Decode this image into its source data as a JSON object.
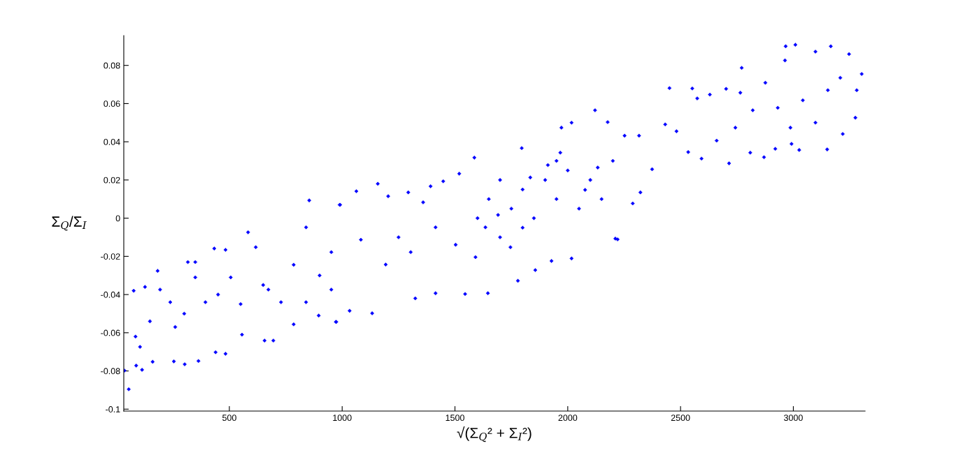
{
  "chart_data": {
    "type": "scatter",
    "xlabel": "√(Σ$_{Q}$² + Σ$_{I}$²)",
    "ylabel": "Σ$_{Q}$/Σ$_{I}$",
    "xlim": [
      32,
      3318
    ],
    "ylim": [
      -0.101,
      0.0956
    ],
    "xticks": [
      500,
      1000,
      1500,
      2000,
      2500,
      3000
    ],
    "yticks": [
      -0.1,
      -0.08,
      -0.06,
      -0.04,
      -0.02,
      0,
      0.02,
      0.04,
      0.06,
      0.08
    ],
    "marker": "diamond",
    "series": [
      {
        "color": "#0000ff",
        "x": [
          35,
          54,
          76,
          87,
          113,
          160,
          182,
          126,
          104,
          254,
          302,
          363,
          316,
          349,
          433,
          483,
          483,
          583,
          854,
          991,
          974,
          656,
          695,
          439,
          556,
          785,
          896,
          84,
          394,
          260,
          238,
          506,
          673,
          785,
          840,
          952,
          617,
          729,
          193,
          349,
          148,
          840,
          952,
          2121,
          2177,
          2017,
          1972,
          1796,
          1586,
          1519,
          1448,
          1392,
          1293,
          1158,
          1063,
          989,
          1204,
          1133,
          1033,
          972,
          1324,
          1414,
          1545,
          1646,
          1779,
          1856,
          1928,
          2017,
          2221,
          1691,
          2077,
          1635,
          2133,
          1967,
          1193,
          1304,
          1083,
          1414,
          1359,
          1503,
          1591,
          1746,
          1834,
          1912,
          2211,
          2374,
          2316,
          2252,
          2322,
          2288,
          2451,
          2432,
          2482,
          2552,
          2574,
          2534,
          2593,
          2630,
          2702,
          2715,
          2660,
          2771,
          2809,
          2870,
          2966,
          3009,
          3166,
          3247,
          3303,
          3281,
          3275,
          3219,
          3150,
          3026,
          2992,
          2920,
          3098,
          2963,
          3042,
          3153,
          2931,
          2820,
          3208,
          3098,
          2876,
          2765,
          2743,
          2987,
          1600,
          1650,
          1700,
          1750,
          1800,
          1850,
          1900,
          1950,
          2000,
          2050,
          2100,
          2150,
          2200,
          1700,
          1800,
          1950,
          300,
          450,
          550,
          650,
          900,
          1250
        ],
        "values": [
          -0.0798,
          -0.0896,
          -0.038,
          -0.0772,
          -0.0794,
          -0.0752,
          -0.0276,
          -0.036,
          -0.0674,
          -0.075,
          -0.0765,
          -0.0748,
          -0.023,
          -0.023,
          -0.0159,
          -0.0166,
          -0.071,
          -0.0074,
          0.0093,
          0.007,
          -0.0543,
          -0.0641,
          -0.0641,
          -0.0702,
          -0.061,
          -0.0556,
          -0.051,
          -0.062,
          -0.044,
          -0.057,
          -0.044,
          -0.031,
          -0.0374,
          -0.0244,
          -0.0048,
          -0.0178,
          -0.0152,
          -0.044,
          -0.0374,
          -0.031,
          -0.054,
          -0.044,
          -0.0374,
          0.0565,
          0.0503,
          0.05,
          0.0474,
          0.0367,
          0.0317,
          0.0233,
          0.0193,
          0.0167,
          0.0135,
          0.018,
          0.0141,
          0.007,
          0.0115,
          -0.0498,
          -0.0485,
          -0.0543,
          -0.042,
          -0.0393,
          -0.0397,
          -0.0393,
          -0.0328,
          -0.0272,
          -0.0224,
          -0.0211,
          -0.0111,
          0.0017,
          0.0148,
          -0.0048,
          0.0265,
          0.0343,
          -0.0243,
          -0.0178,
          -0.0113,
          -0.0048,
          0.0083,
          -0.0139,
          -0.0204,
          -0.0152,
          0.0213,
          0.0278,
          -0.0107,
          0.0256,
          0.0432,
          0.0432,
          0.0135,
          0.0077,
          0.0681,
          0.0491,
          0.0455,
          0.0679,
          0.0627,
          0.0346,
          0.0312,
          0.0647,
          0.0677,
          0.0287,
          0.0406,
          0.0787,
          0.0343,
          0.0319,
          0.09,
          0.0908,
          0.09,
          0.0859,
          0.0755,
          0.067,
          0.0526,
          0.0441,
          0.036,
          0.0357,
          0.0389,
          0.0363,
          0.0872,
          0.0826,
          0.0617,
          0.067,
          0.0578,
          0.0565,
          0.0735,
          0.05,
          0.0709,
          0.0657,
          0.0474,
          0.0474,
          0.0,
          0.01,
          -0.01,
          0.005,
          0.015,
          0.0,
          0.02,
          0.01,
          0.025,
          0.005,
          0.02,
          0.01,
          0.03,
          0.02,
          -0.005,
          0.03,
          -0.05,
          -0.04,
          -0.045,
          -0.035,
          -0.03,
          -0.01
        ]
      }
    ]
  }
}
